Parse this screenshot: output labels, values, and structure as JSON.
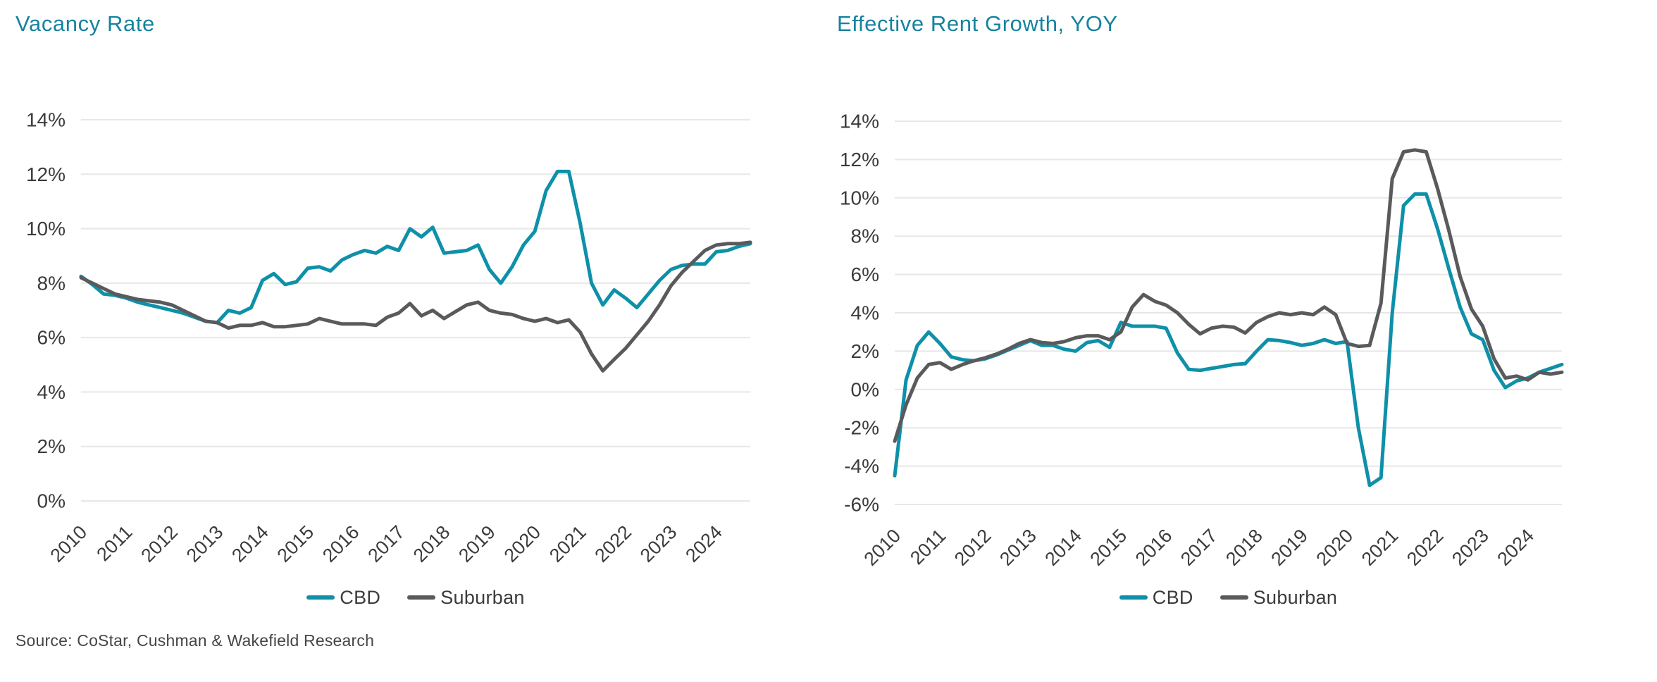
{
  "page": {
    "source_note": "Source: CoStar, Cushman & Wakefield Research"
  },
  "colors": {
    "accent_teal": "#0E90A9",
    "dark_gray": "#595A5C",
    "title_teal": "#15839E",
    "axis_text": "#3B3B3D",
    "gridline": "#E7E7E7"
  },
  "chart_data": [
    {
      "id": "vacancy-rate",
      "type": "line",
      "title": "Vacancy Rate",
      "x_unit": "quarterly",
      "x_range": [
        "2010 Q1",
        "2024 Q4"
      ],
      "year_ticks": [
        "2010",
        "2011",
        "2012",
        "2013",
        "2014",
        "2015",
        "2016",
        "2017",
        "2018",
        "2019",
        "2020",
        "2021",
        "2022",
        "2023",
        "2024"
      ],
      "ylim": [
        0,
        14
      ],
      "ytick_step": 2,
      "ytick_suffix": "%",
      "grid": true,
      "legend_position": "bottom-center",
      "series": [
        {
          "name": "CBD",
          "color": "#0E90A9",
          "values": [
            8.25,
            7.95,
            7.6,
            7.55,
            7.45,
            7.3,
            7.2,
            7.1,
            7.0,
            6.9,
            6.75,
            6.6,
            6.55,
            7.0,
            6.9,
            7.1,
            8.1,
            8.35,
            7.95,
            8.05,
            8.55,
            8.6,
            8.45,
            8.85,
            9.05,
            9.2,
            9.1,
            9.35,
            9.2,
            10.0,
            9.7,
            10.05,
            9.1,
            9.15,
            9.2,
            9.4,
            8.5,
            8.0,
            8.6,
            9.4,
            9.9,
            11.4,
            12.1,
            12.1,
            10.2,
            8.0,
            7.2,
            7.75,
            7.45,
            7.1,
            7.6,
            8.1,
            8.5,
            8.65,
            8.7,
            8.7,
            9.15,
            9.2,
            9.35,
            9.45
          ]
        },
        {
          "name": "Suburban",
          "color": "#595A5C",
          "values": [
            8.2,
            8.0,
            7.8,
            7.6,
            7.5,
            7.4,
            7.35,
            7.3,
            7.2,
            7.0,
            6.8,
            6.6,
            6.55,
            6.35,
            6.45,
            6.45,
            6.55,
            6.4,
            6.4,
            6.45,
            6.5,
            6.7,
            6.6,
            6.5,
            6.5,
            6.5,
            6.45,
            6.75,
            6.9,
            7.25,
            6.8,
            7.0,
            6.7,
            6.95,
            7.2,
            7.3,
            7.0,
            6.9,
            6.85,
            6.7,
            6.6,
            6.7,
            6.55,
            6.65,
            6.2,
            5.4,
            4.78,
            5.2,
            5.6,
            6.1,
            6.6,
            7.2,
            7.9,
            8.4,
            8.8,
            9.2,
            9.4,
            9.45,
            9.45,
            9.5
          ]
        }
      ]
    },
    {
      "id": "effective-rent-growth",
      "type": "line",
      "title": "Effective Rent Growth, YOY",
      "x_unit": "quarterly",
      "x_range": [
        "2010 Q1",
        "2024 Q4"
      ],
      "year_ticks": [
        "2010",
        "2011",
        "2012",
        "2013",
        "2014",
        "2015",
        "2016",
        "2017",
        "2018",
        "2019",
        "2020",
        "2021",
        "2022",
        "2023",
        "2024"
      ],
      "ylim": [
        -6,
        14
      ],
      "ytick_step": 2,
      "ytick_suffix": "%",
      "grid": true,
      "legend_position": "bottom-center",
      "series": [
        {
          "name": "CBD",
          "color": "#0E90A9",
          "values": [
            -4.5,
            0.5,
            2.3,
            3.0,
            2.4,
            1.7,
            1.55,
            1.5,
            1.6,
            1.8,
            2.05,
            2.3,
            2.55,
            2.3,
            2.3,
            2.1,
            2.0,
            2.45,
            2.55,
            2.2,
            3.5,
            3.3,
            3.3,
            3.3,
            3.2,
            1.9,
            1.05,
            1.0,
            1.1,
            1.2,
            1.3,
            1.35,
            2.0,
            2.6,
            2.55,
            2.45,
            2.3,
            2.4,
            2.6,
            2.4,
            2.5,
            -2.0,
            -5.0,
            -4.6,
            4.0,
            9.6,
            10.2,
            10.2,
            8.4,
            6.3,
            4.3,
            2.9,
            2.6,
            1.0,
            0.1,
            0.45,
            0.6,
            0.9,
            1.1,
            1.3
          ]
        },
        {
          "name": "Suburban",
          "color": "#595A5C",
          "values": [
            -2.7,
            -0.8,
            0.6,
            1.3,
            1.4,
            1.05,
            1.3,
            1.5,
            1.65,
            1.85,
            2.1,
            2.4,
            2.6,
            2.45,
            2.4,
            2.5,
            2.7,
            2.8,
            2.8,
            2.6,
            3.0,
            4.3,
            4.95,
            4.6,
            4.4,
            4.0,
            3.4,
            2.9,
            3.2,
            3.3,
            3.25,
            2.95,
            3.5,
            3.8,
            4.0,
            3.9,
            4.0,
            3.9,
            4.3,
            3.9,
            2.4,
            2.25,
            2.3,
            4.5,
            11.0,
            12.4,
            12.5,
            12.4,
            10.5,
            8.3,
            5.9,
            4.2,
            3.3,
            1.6,
            0.6,
            0.7,
            0.5,
            0.9,
            0.8,
            0.9
          ]
        }
      ]
    }
  ]
}
